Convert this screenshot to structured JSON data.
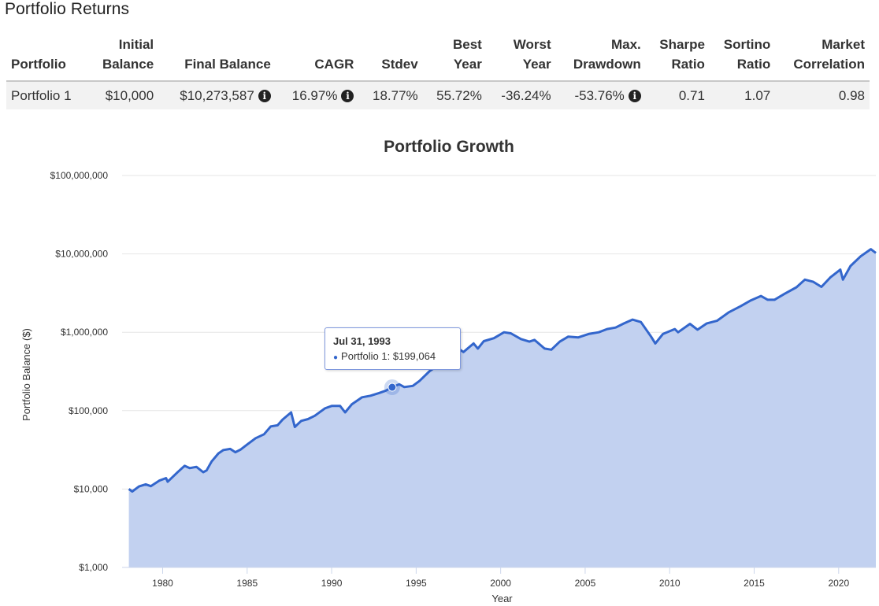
{
  "page": {
    "section_title": "Portfolio Returns"
  },
  "table": {
    "headers": {
      "portfolio": "Portfolio",
      "initial_balance": [
        "Initial",
        "Balance"
      ],
      "final_balance": "Final Balance",
      "cagr": "CAGR",
      "stdev": "Stdev",
      "best_year": [
        "Best",
        "Year"
      ],
      "worst_year": [
        "Worst",
        "Year"
      ],
      "max_drawdown": [
        "Max.",
        "Drawdown"
      ],
      "sharpe_ratio": [
        "Sharpe",
        "Ratio"
      ],
      "sortino_ratio": [
        "Sortino",
        "Ratio"
      ],
      "market_correlation": [
        "Market",
        "Correlation"
      ]
    },
    "rows": [
      {
        "portfolio": "Portfolio 1",
        "initial_balance": "$10,000",
        "final_balance": "$10,273,587",
        "cagr": "16.97%",
        "stdev": "18.77%",
        "best_year": "55.72%",
        "worst_year": "-36.24%",
        "max_drawdown": "-53.76%",
        "sharpe_ratio": "0.71",
        "sortino_ratio": "1.07",
        "market_correlation": "0.98"
      }
    ],
    "info_icon_glyph": "i"
  },
  "chart_data": {
    "type": "area",
    "title": "Portfolio Growth",
    "xlabel": "Year",
    "ylabel": "Portfolio Balance ($)",
    "y_scale": "log",
    "ylim": [
      1000,
      100000000
    ],
    "xlim": [
      1977.6,
      2022.2
    ],
    "x_ticks": [
      "1980",
      "1985",
      "1990",
      "1995",
      "2000",
      "2005",
      "2010",
      "2015",
      "2020"
    ],
    "y_ticks": [
      "$1,000",
      "$10,000",
      "$100,000",
      "$1,000,000",
      "$10,000,000",
      "$100,000,000"
    ],
    "grid": true,
    "colors": {
      "line": "#3366cc",
      "fill": "#c2d1f0"
    },
    "series": [
      {
        "name": "Portfolio 1",
        "points": [
          [
            1978.0,
            10000
          ],
          [
            1978.2,
            9300
          ],
          [
            1978.6,
            10800
          ],
          [
            1979.0,
            11500
          ],
          [
            1979.3,
            10900
          ],
          [
            1979.8,
            12800
          ],
          [
            1980.2,
            13800
          ],
          [
            1980.3,
            12400
          ],
          [
            1980.9,
            16500
          ],
          [
            1981.3,
            19800
          ],
          [
            1981.6,
            18500
          ],
          [
            1982.0,
            19200
          ],
          [
            1982.4,
            16400
          ],
          [
            1982.6,
            17300
          ],
          [
            1982.9,
            22500
          ],
          [
            1983.3,
            28500
          ],
          [
            1983.6,
            31500
          ],
          [
            1984.0,
            32500
          ],
          [
            1984.3,
            29500
          ],
          [
            1984.6,
            31800
          ],
          [
            1985.0,
            37000
          ],
          [
            1985.5,
            44500
          ],
          [
            1986.0,
            50000
          ],
          [
            1986.4,
            63000
          ],
          [
            1986.8,
            65000
          ],
          [
            1987.1,
            77000
          ],
          [
            1987.6,
            95000
          ],
          [
            1987.82,
            62000
          ],
          [
            1988.2,
            74000
          ],
          [
            1988.6,
            78000
          ],
          [
            1989.0,
            86000
          ],
          [
            1989.6,
            107000
          ],
          [
            1990.0,
            115000
          ],
          [
            1990.5,
            115000
          ],
          [
            1990.8,
            95000
          ],
          [
            1991.2,
            121000
          ],
          [
            1991.8,
            148000
          ],
          [
            1992.3,
            155000
          ],
          [
            1992.8,
            168000
          ],
          [
            1993.2,
            180000
          ],
          [
            1993.58,
            199064
          ],
          [
            1994.0,
            217000
          ],
          [
            1994.3,
            200000
          ],
          [
            1994.8,
            207000
          ],
          [
            1995.2,
            240000
          ],
          [
            1995.8,
            320000
          ],
          [
            1996.3,
            380000
          ],
          [
            1996.7,
            420000
          ],
          [
            1997.2,
            500000
          ],
          [
            1997.6,
            600000
          ],
          [
            1997.8,
            560000
          ],
          [
            1998.4,
            720000
          ],
          [
            1998.65,
            620000
          ],
          [
            1999.0,
            770000
          ],
          [
            1999.6,
            840000
          ],
          [
            2000.2,
            1000000
          ],
          [
            2000.6,
            970000
          ],
          [
            2001.2,
            820000
          ],
          [
            2001.7,
            760000
          ],
          [
            2002.0,
            800000
          ],
          [
            2002.6,
            620000
          ],
          [
            2003.0,
            600000
          ],
          [
            2003.5,
            760000
          ],
          [
            2004.0,
            880000
          ],
          [
            2004.6,
            860000
          ],
          [
            2005.2,
            950000
          ],
          [
            2005.8,
            1000000
          ],
          [
            2006.3,
            1100000
          ],
          [
            2006.8,
            1150000
          ],
          [
            2007.3,
            1300000
          ],
          [
            2007.8,
            1450000
          ],
          [
            2008.3,
            1350000
          ],
          [
            2008.9,
            880000
          ],
          [
            2009.15,
            720000
          ],
          [
            2009.6,
            950000
          ],
          [
            2010.3,
            1100000
          ],
          [
            2010.5,
            1000000
          ],
          [
            2011.2,
            1280000
          ],
          [
            2011.65,
            1080000
          ],
          [
            2012.2,
            1300000
          ],
          [
            2012.8,
            1400000
          ],
          [
            2013.5,
            1800000
          ],
          [
            2014.2,
            2150000
          ],
          [
            2014.8,
            2550000
          ],
          [
            2015.4,
            2900000
          ],
          [
            2015.8,
            2600000
          ],
          [
            2016.2,
            2600000
          ],
          [
            2016.8,
            3100000
          ],
          [
            2017.5,
            3750000
          ],
          [
            2018.0,
            4700000
          ],
          [
            2018.5,
            4400000
          ],
          [
            2018.98,
            3800000
          ],
          [
            2019.5,
            5000000
          ],
          [
            2020.1,
            6300000
          ],
          [
            2020.25,
            4700000
          ],
          [
            2020.7,
            7000000
          ],
          [
            2021.3,
            9300000
          ],
          [
            2021.9,
            11500000
          ],
          [
            2022.2,
            10273587
          ]
        ]
      }
    ],
    "tooltip": {
      "date": "Jul 31, 1993",
      "series": "Portfolio 1",
      "value": "$199,064",
      "x": 1993.58,
      "y": 199064
    }
  }
}
